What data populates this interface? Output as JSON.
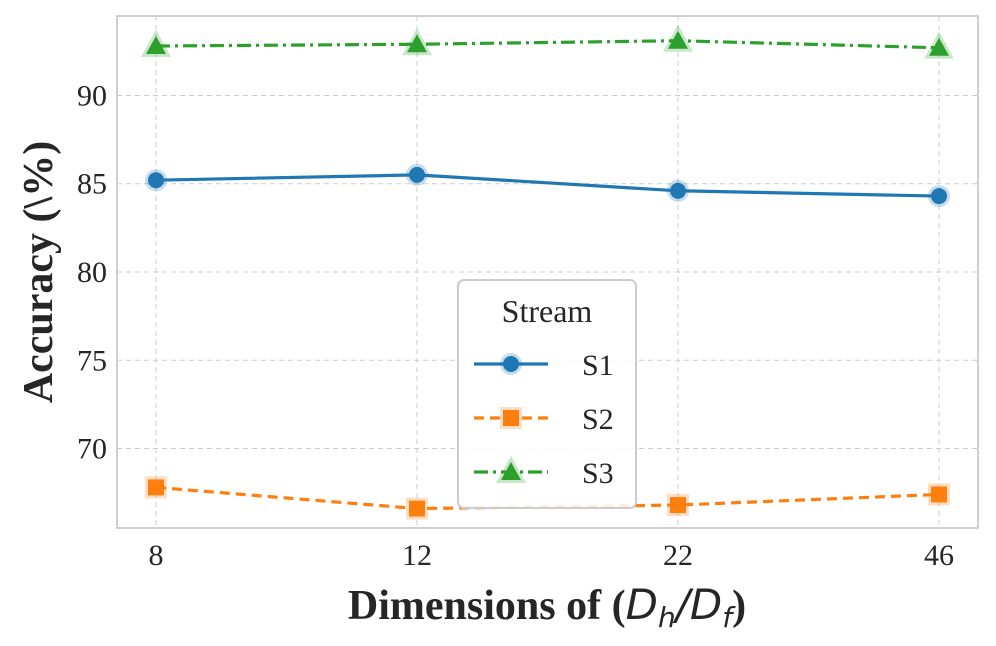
{
  "chart_data": {
    "type": "line",
    "title": "",
    "categories": [
      "8",
      "12",
      "22",
      "46"
    ],
    "xlabel": "Dimensions of (",
    "xlabel_math": {
      "D": "D",
      "h": "h",
      "slash": "/",
      "f": "f",
      "close": ")"
    },
    "ylabel": "Accuracy (\\%)",
    "ylim": [
      65.5,
      94.5
    ],
    "yticks": [
      70,
      75,
      80,
      85,
      90
    ],
    "grid": true,
    "legend": {
      "title": "Stream",
      "position": "center-bottom"
    },
    "series": [
      {
        "name": "S1",
        "values": [
          85.2,
          85.5,
          84.6,
          84.3
        ],
        "color": "#1f77b4",
        "marker": "circle",
        "linestyle": "solid"
      },
      {
        "name": "S2",
        "values": [
          67.8,
          66.6,
          66.8,
          67.4
        ],
        "color": "#ff7f0e",
        "marker": "square",
        "linestyle": "dashed"
      },
      {
        "name": "S3",
        "values": [
          92.8,
          92.9,
          93.1,
          92.7
        ],
        "color": "#2ca02c",
        "marker": "triangle",
        "linestyle": "dashdot"
      }
    ]
  }
}
